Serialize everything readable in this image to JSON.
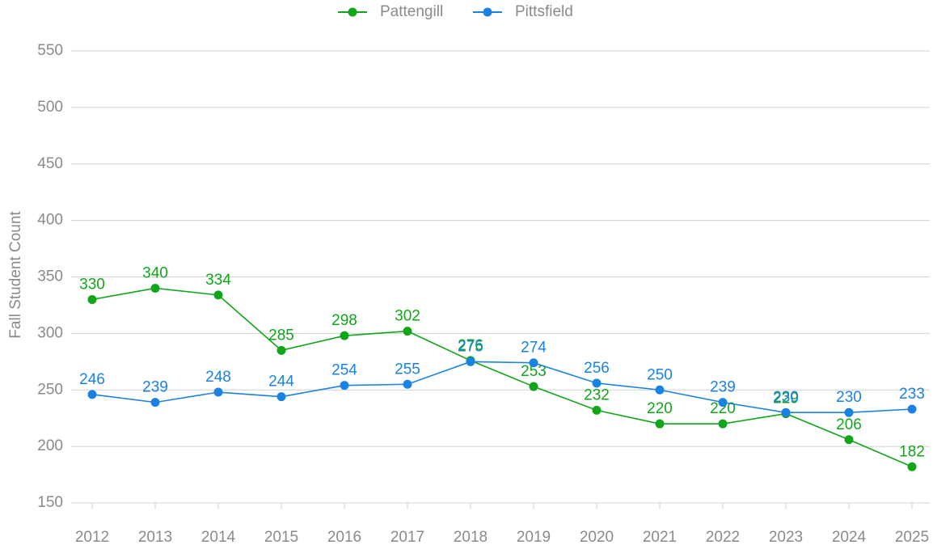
{
  "chart_data": {
    "type": "line",
    "y_label": "Fall Student Count",
    "categories": [
      "2012",
      "2013",
      "2014",
      "2015",
      "2016",
      "2017",
      "2018",
      "2019",
      "2020",
      "2021",
      "2022",
      "2023",
      "2024",
      "2025"
    ],
    "series": [
      {
        "name": "Pattengill",
        "color": "#11a51a",
        "values": [
          330,
          340,
          334,
          285,
          298,
          302,
          276,
          253,
          232,
          220,
          220,
          229,
          206,
          182
        ]
      },
      {
        "name": "Pittsfield",
        "color": "#1a82e2",
        "values": [
          246,
          239,
          248,
          244,
          254,
          255,
          275,
          274,
          256,
          250,
          239,
          230,
          230,
          233
        ]
      }
    ],
    "ylim": [
      150,
      550
    ],
    "yticks": [
      150,
      200,
      250,
      300,
      350,
      400,
      450,
      500,
      550
    ],
    "grid": true,
    "legend": "top"
  }
}
